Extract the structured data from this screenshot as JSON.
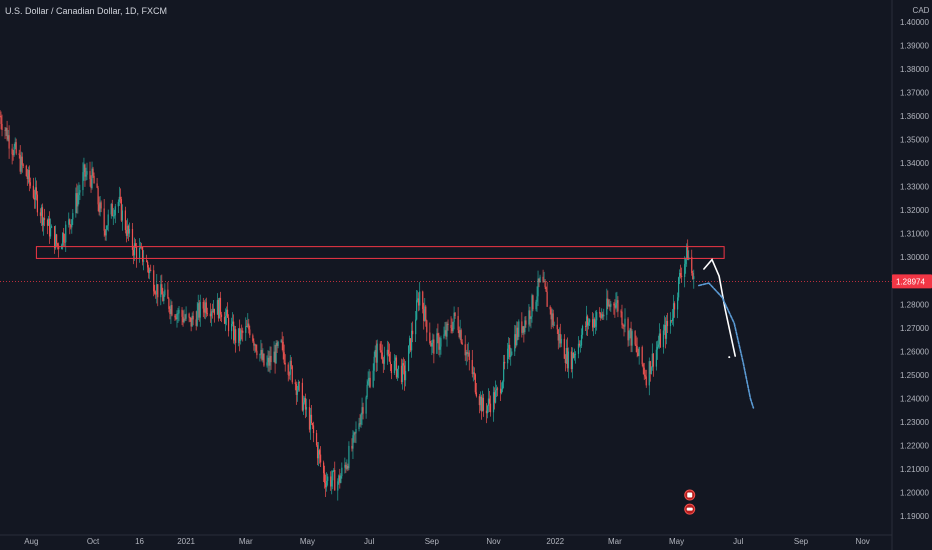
{
  "header": {
    "title": "U.S. Dollar / Canadian Dollar, 1D, FXCM"
  },
  "chart_data": {
    "type": "candlestick",
    "symbol": "USDCAD",
    "currency": "CAD",
    "ylim": [
      1.185,
      1.405
    ],
    "y_ticks": [
      {
        "value": 1.4,
        "label": "1.40000"
      },
      {
        "value": 1.39,
        "label": "1.39000"
      },
      {
        "value": 1.38,
        "label": "1.38000"
      },
      {
        "value": 1.37,
        "label": "1.37000"
      },
      {
        "value": 1.36,
        "label": "1.36000"
      },
      {
        "value": 1.35,
        "label": "1.35000"
      },
      {
        "value": 1.34,
        "label": "1.34000"
      },
      {
        "value": 1.33,
        "label": "1.33000"
      },
      {
        "value": 1.32,
        "label": "1.32000"
      },
      {
        "value": 1.31,
        "label": "1.31000"
      },
      {
        "value": 1.3,
        "label": "1.30000"
      },
      {
        "value": 1.28,
        "label": "1.28000"
      },
      {
        "value": 1.27,
        "label": "1.27000"
      },
      {
        "value": 1.26,
        "label": "1.26000"
      },
      {
        "value": 1.25,
        "label": "1.25000"
      },
      {
        "value": 1.24,
        "label": "1.24000"
      },
      {
        "value": 1.23,
        "label": "1.23000"
      },
      {
        "value": 1.22,
        "label": "1.22000"
      },
      {
        "value": 1.21,
        "label": "1.21000"
      },
      {
        "value": 1.2,
        "label": "1.20000"
      },
      {
        "value": 1.19,
        "label": "1.19000"
      }
    ],
    "x_ticks": [
      {
        "label": "Aug",
        "date": "2020-08-01"
      },
      {
        "label": "Oct",
        "date": "2020-10-01"
      },
      {
        "label": "16",
        "date": "2020-11-16"
      },
      {
        "label": "2021",
        "date": "2021-01-01"
      },
      {
        "label": "Mar",
        "date": "2021-03-01"
      },
      {
        "label": "May",
        "date": "2021-05-01"
      },
      {
        "label": "Jul",
        "date": "2021-07-01"
      },
      {
        "label": "Sep",
        "date": "2021-09-01"
      },
      {
        "label": "Nov",
        "date": "2021-11-01"
      },
      {
        "label": "2022",
        "date": "2022-01-01"
      },
      {
        "label": "Mar",
        "date": "2022-03-01"
      },
      {
        "label": "May",
        "date": "2022-05-01"
      },
      {
        "label": "Jul",
        "date": "2022-07-01"
      },
      {
        "label": "Sep",
        "date": "2022-09-01"
      },
      {
        "label": "Nov",
        "date": "2022-11-01"
      }
    ],
    "xlim": [
      "2020-07-01",
      "2022-11-30"
    ],
    "current_price": {
      "value": 1.28974,
      "label": "1.28974",
      "color": "#f23645"
    },
    "colors": {
      "up": "#26a69a",
      "down": "#ef5350",
      "background": "#131722",
      "forecast_white": "#ffffff",
      "forecast_blue": "#5b9bd5"
    },
    "zone": {
      "x_start": "2020-08-06",
      "x_end": "2022-06-17",
      "y_low": 1.2995,
      "y_high": 1.3045,
      "color": "#f23645"
    },
    "price_path": [
      {
        "date": "2020-07-01",
        "price": 1.36
      },
      {
        "date": "2020-07-12",
        "price": 1.348
      },
      {
        "date": "2020-07-28",
        "price": 1.334
      },
      {
        "date": "2020-08-12",
        "price": 1.318
      },
      {
        "date": "2020-08-27",
        "price": 1.305
      },
      {
        "date": "2020-09-08",
        "price": 1.315
      },
      {
        "date": "2020-09-22",
        "price": 1.335
      },
      {
        "date": "2020-10-01",
        "price": 1.333
      },
      {
        "date": "2020-10-12",
        "price": 1.312
      },
      {
        "date": "2020-10-25",
        "price": 1.325
      },
      {
        "date": "2020-11-08",
        "price": 1.305
      },
      {
        "date": "2020-11-20",
        "price": 1.3
      },
      {
        "date": "2020-12-05",
        "price": 1.285
      },
      {
        "date": "2020-12-20",
        "price": 1.278
      },
      {
        "date": "2021-01-05",
        "price": 1.272
      },
      {
        "date": "2021-01-20",
        "price": 1.28
      },
      {
        "date": "2021-02-05",
        "price": 1.278
      },
      {
        "date": "2021-02-20",
        "price": 1.265
      },
      {
        "date": "2021-03-05",
        "price": 1.27
      },
      {
        "date": "2021-03-20",
        "price": 1.253
      },
      {
        "date": "2021-04-05",
        "price": 1.262
      },
      {
        "date": "2021-04-20",
        "price": 1.246
      },
      {
        "date": "2021-05-05",
        "price": 1.228
      },
      {
        "date": "2021-05-18",
        "price": 1.206
      },
      {
        "date": "2021-06-01",
        "price": 1.205
      },
      {
        "date": "2021-06-15",
        "price": 1.22
      },
      {
        "date": "2021-06-25",
        "price": 1.238
      },
      {
        "date": "2021-07-10",
        "price": 1.262
      },
      {
        "date": "2021-07-22",
        "price": 1.255
      },
      {
        "date": "2021-08-05",
        "price": 1.25
      },
      {
        "date": "2021-08-20",
        "price": 1.285
      },
      {
        "date": "2021-09-01",
        "price": 1.262
      },
      {
        "date": "2021-09-12",
        "price": 1.265
      },
      {
        "date": "2021-09-25",
        "price": 1.275
      },
      {
        "date": "2021-10-08",
        "price": 1.255
      },
      {
        "date": "2021-10-22",
        "price": 1.235
      },
      {
        "date": "2021-11-05",
        "price": 1.242
      },
      {
        "date": "2021-11-20",
        "price": 1.265
      },
      {
        "date": "2021-12-05",
        "price": 1.275
      },
      {
        "date": "2021-12-18",
        "price": 1.29
      },
      {
        "date": "2022-01-01",
        "price": 1.27
      },
      {
        "date": "2022-01-15",
        "price": 1.255
      },
      {
        "date": "2022-02-01",
        "price": 1.272
      },
      {
        "date": "2022-02-15",
        "price": 1.275
      },
      {
        "date": "2022-03-01",
        "price": 1.282
      },
      {
        "date": "2022-03-15",
        "price": 1.268
      },
      {
        "date": "2022-04-01",
        "price": 1.25
      },
      {
        "date": "2022-04-12",
        "price": 1.262
      },
      {
        "date": "2022-04-25",
        "price": 1.273
      },
      {
        "date": "2022-05-06",
        "price": 1.295
      },
      {
        "date": "2022-05-12",
        "price": 1.302
      },
      {
        "date": "2022-05-18",
        "price": 1.289
      }
    ],
    "forecast_paths": [
      {
        "color": "#ffffff",
        "points": [
          {
            "date": "2022-05-28",
            "price": 1.295
          },
          {
            "date": "2022-06-05",
            "price": 1.299
          },
          {
            "date": "2022-06-12",
            "price": 1.292
          },
          {
            "date": "2022-06-18",
            "price": 1.278
          },
          {
            "date": "2022-06-24",
            "price": 1.266
          },
          {
            "date": "2022-06-28",
            "price": 1.258
          }
        ]
      },
      {
        "color": "#5b9bd5",
        "points": [
          {
            "date": "2022-05-23",
            "price": 1.288
          },
          {
            "date": "2022-06-02",
            "price": 1.289
          },
          {
            "date": "2022-06-15",
            "price": 1.283
          },
          {
            "date": "2022-06-27",
            "price": 1.272
          },
          {
            "date": "2022-07-06",
            "price": 1.255
          },
          {
            "date": "2022-07-13",
            "price": 1.24
          },
          {
            "date": "2022-07-16",
            "price": 1.236
          }
        ]
      }
    ],
    "events": [
      {
        "date": "2022-05-14",
        "price": 1.199,
        "label": "E"
      },
      {
        "date": "2022-05-14",
        "price": 1.193,
        "label": ""
      }
    ]
  }
}
